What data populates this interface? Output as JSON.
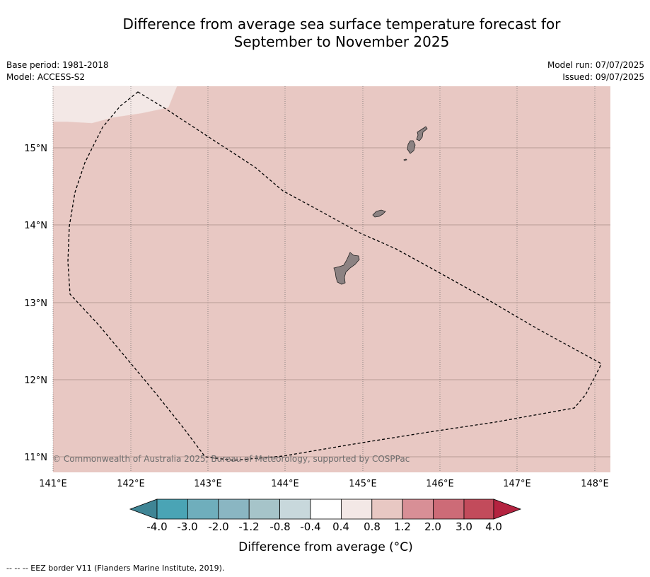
{
  "title": {
    "line1": "Difference from average sea surface temperature forecast for",
    "line2": "September to November 2025"
  },
  "meta": {
    "base_period": "Base period: 1981-2018",
    "model": "Model: ACCESS-S2",
    "model_run": "Model run: 07/07/2025",
    "issued": "Issued: 09/07/2025"
  },
  "map": {
    "lon_labels": [
      "141°E",
      "142°E",
      "143°E",
      "144°E",
      "145°E",
      "146°E",
      "147°E",
      "148°E"
    ],
    "lat_labels": [
      "15°N",
      "14°N",
      "13°N",
      "12°N",
      "11°N"
    ],
    "copyright": "© Commonwealth of Australia 2025, Bureau of Meteorology, supported by COSPPac",
    "background_color": "#e8c8c3",
    "cooler_patch_color": "#f3e8e6",
    "land_color": "#8c8282",
    "border_line_style": "dashed"
  },
  "colorbar": {
    "colors": [
      "#3f8595",
      "#4aa4b5",
      "#6faebc",
      "#8ab6c2",
      "#a6c4c9",
      "#c8d8dc",
      "#ffffff",
      "#f3e8e6",
      "#e8c8c3",
      "#d88f96",
      "#cd6b77",
      "#c24b5b",
      "#b42340"
    ],
    "tick_labels": [
      "-4.0",
      "-3.0",
      "-2.0",
      "-1.2",
      "-0.8",
      "-0.4",
      "0.4",
      "0.8",
      "1.2",
      "2.0",
      "3.0",
      "4.0"
    ],
    "title": "Difference from average (°C)"
  },
  "footnote": "--  --  -- EEZ border V11 (Flanders Marine Institute, 2019)."
}
